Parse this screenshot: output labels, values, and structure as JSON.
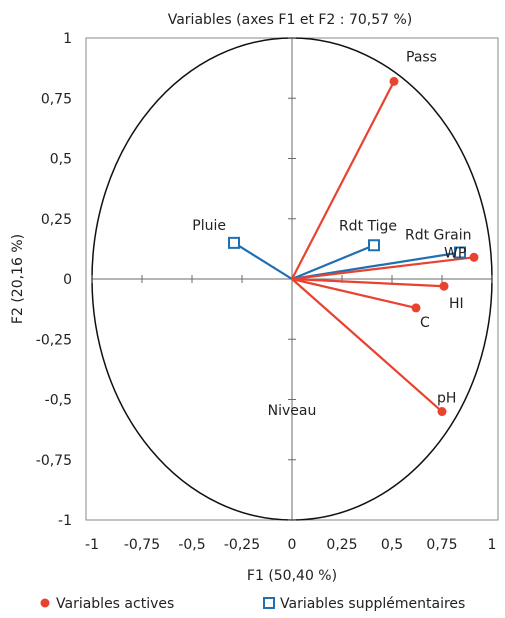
{
  "chart_data": {
    "type": "scatter",
    "title": "Variables (axes F1 et F2 : 70,57 %)",
    "xlabel": "F1 (50,40 %)",
    "ylabel": "F2 (20,16 %)",
    "xlim": [
      -1,
      1
    ],
    "ylim": [
      -1,
      1
    ],
    "x_ticks": [
      "-1",
      "-0,75",
      "-0,5",
      "-0,25",
      "0",
      "0,25",
      "0,5",
      "0,75",
      "1"
    ],
    "y_ticks": [
      "-1",
      "-0,75",
      "-0,5",
      "-0,25",
      "0",
      "0,25",
      "0,5",
      "0,75",
      "1"
    ],
    "correlation_circle": true,
    "colors": {
      "active": "#e8432f",
      "supplementary": "#1f6fb4"
    },
    "series": [
      {
        "name": "Variables actives",
        "marker": "circle",
        "points": [
          {
            "label": "Pass",
            "x": 0.51,
            "y": 0.82
          },
          {
            "label": "WP",
            "x": 0.91,
            "y": 0.09
          },
          {
            "label": "HI",
            "x": 0.76,
            "y": -0.03
          },
          {
            "label": "C",
            "x": 0.62,
            "y": -0.12
          },
          {
            "label": "pH",
            "x": 0.75,
            "y": -0.55
          }
        ]
      },
      {
        "name": "Variables supplémentaires",
        "marker": "square",
        "points": [
          {
            "label": "Pluie",
            "x": -0.29,
            "y": 0.15
          },
          {
            "label": "Rdt Tige",
            "x": 0.41,
            "y": 0.14
          },
          {
            "label": "Rdt Grain",
            "x": 0.84,
            "y": 0.11
          },
          {
            "label": "Niveau",
            "x": 0.0,
            "y": 0.0
          }
        ]
      }
    ],
    "legend": {
      "position": "bottom"
    }
  }
}
